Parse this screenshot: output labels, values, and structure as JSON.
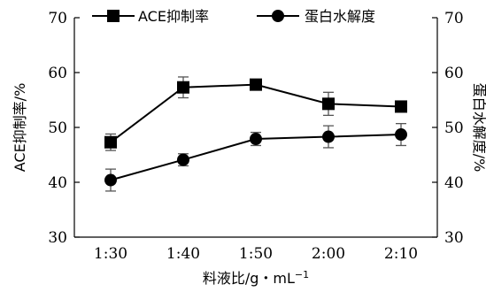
{
  "chart_data": {
    "type": "line",
    "categories": [
      "1:30",
      "1:40",
      "1:50",
      "2:00",
      "2:10"
    ],
    "xlabel": "料液比/g・mL",
    "xlabel_sup": "−1",
    "ylabel_left": "ACE抑制率/%",
    "ylabel_right": "蛋白水解度/%",
    "ylim": [
      30,
      70
    ],
    "yticks": [
      "30",
      "40",
      "50",
      "60",
      "70"
    ],
    "legend_position": "top",
    "grid": false,
    "series": [
      {
        "name": "ACE抑制率",
        "marker": "square",
        "axis": "left",
        "values": [
          47.3,
          57.3,
          57.8,
          54.3,
          53.8
        ],
        "errors": [
          1.5,
          1.9,
          0.5,
          2.1,
          0.8
        ],
        "color": "#000000"
      },
      {
        "name": "蛋白水解度",
        "marker": "circle",
        "axis": "right",
        "values": [
          40.4,
          44.1,
          47.9,
          48.3,
          48.7
        ],
        "errors": [
          2.0,
          1.1,
          1.2,
          2.0,
          2.0
        ],
        "color": "#000000"
      }
    ]
  }
}
